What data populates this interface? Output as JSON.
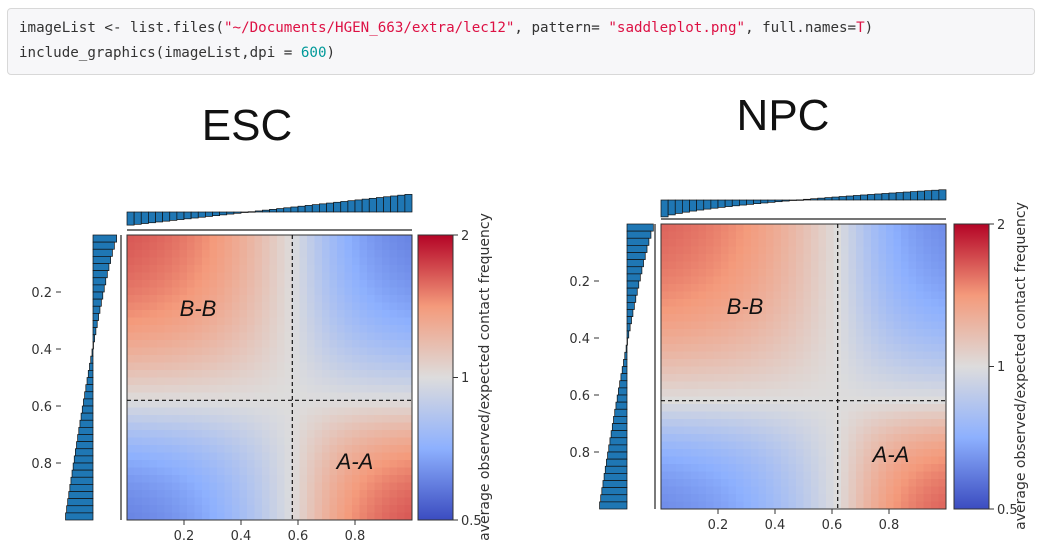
{
  "code": {
    "line1": {
      "prefix": "imageList <- list.files(",
      "path": "\"~/Documents/HGEN_663/extra/lec12\"",
      "mid1": ", pattern= ",
      "pattern": "\"saddleplot.png\"",
      "mid2": ", full.names=",
      "flag": "T",
      "suffix": ")"
    },
    "line2": {
      "prefix": "include_graphics(imageList,dpi = ",
      "dpi": "600",
      "suffix": ")"
    }
  },
  "colors": {
    "blue_end": "#3b4cc0",
    "mid": "#dddcdc",
    "red_end": "#b40426",
    "histogram": "#1f77b4",
    "code_string": "#dd1144",
    "code_number": "#009999"
  },
  "chart_data": [
    {
      "type": "heatmap",
      "title": "ESC",
      "regions": [
        "B-B",
        "A-A"
      ],
      "x_ticks": [
        "0.2",
        "0.4",
        "0.6",
        "0.8"
      ],
      "y_ticks": [
        "0.2",
        "0.4",
        "0.6",
        "0.8"
      ],
      "xlim": [
        0,
        1
      ],
      "ylim": [
        0,
        1
      ],
      "threshold": 0.58,
      "colorbar": {
        "label": "average observed/expected contact frequency",
        "ticks": [
          "2",
          "1",
          "0.5"
        ],
        "scale": "log",
        "range": [
          0.5,
          2
        ]
      },
      "strength": 0.85,
      "top_hist": {
        "low": -0.75,
        "high": 1.0,
        "power": 1.0
      },
      "left_hist": {
        "low": -0.9,
        "high": 1.0,
        "power": 0.8
      }
    },
    {
      "type": "heatmap",
      "title": "NPC",
      "regions": [
        "B-B",
        "A-A"
      ],
      "x_ticks": [
        "0.2",
        "0.4",
        "0.6",
        "0.8"
      ],
      "y_ticks": [
        "0.2",
        "0.4",
        "0.6",
        "0.8"
      ],
      "xlim": [
        0,
        1
      ],
      "ylim": [
        0,
        1
      ],
      "threshold": 0.62,
      "colorbar": {
        "label": "average observed/expected contact frequency",
        "ticks": [
          "2",
          "1",
          "0.5"
        ],
        "scale": "log",
        "range": [
          0.5,
          2
        ]
      },
      "strength": 0.8,
      "top_hist": {
        "low": -1.0,
        "high": 0.55,
        "power": 0.6
      },
      "left_hist": {
        "low": -1.0,
        "high": 1.0,
        "power": 0.8
      }
    }
  ]
}
